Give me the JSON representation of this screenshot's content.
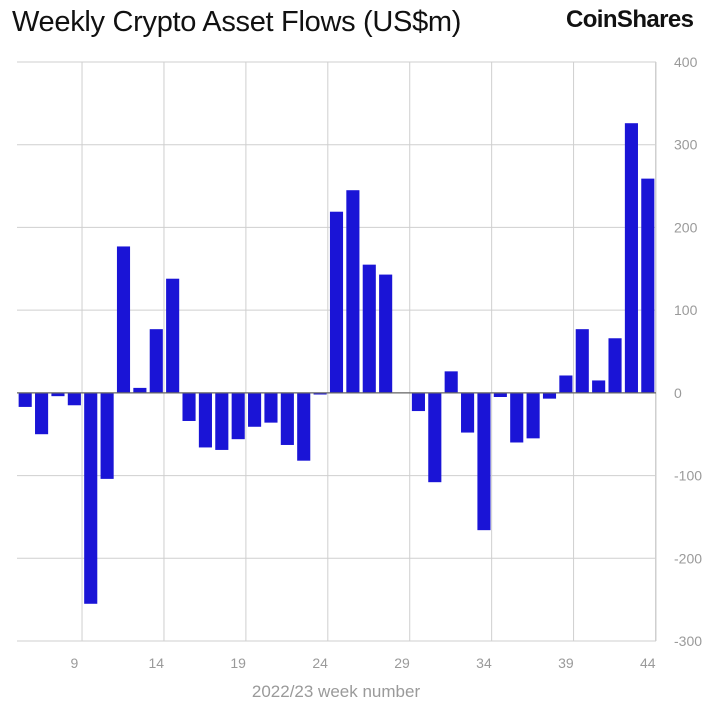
{
  "header": {
    "title": "Weekly Crypto Asset Flows (US$m)",
    "brand": "CoinShares"
  },
  "chart_data": {
    "type": "bar",
    "title": "Weekly Crypto Asset Flows (US$m)",
    "xlabel": "2022/23 week number",
    "ylabel": "",
    "x": [
      6,
      7,
      8,
      9,
      10,
      11,
      12,
      13,
      14,
      15,
      16,
      17,
      18,
      19,
      20,
      21,
      22,
      23,
      24,
      25,
      26,
      27,
      28,
      29,
      30,
      31,
      32,
      33,
      34,
      35,
      36,
      37,
      38,
      39,
      40,
      41,
      42,
      43,
      44
    ],
    "values": [
      -17,
      -50,
      -4,
      -15,
      -255,
      -104,
      177,
      6,
      77,
      138,
      -34,
      -66,
      -69,
      -56,
      -41,
      -36,
      -63,
      -82,
      -2,
      219,
      245,
      155,
      143,
      0,
      -22,
      -108,
      26,
      -48,
      -166,
      -5,
      -60,
      -55,
      -7,
      21,
      77,
      15,
      66,
      326,
      259
    ],
    "xticks": [
      9,
      14,
      19,
      24,
      29,
      34,
      39,
      44
    ],
    "xlim": [
      5.5,
      44.5
    ],
    "ylim": [
      -300,
      400
    ],
    "yticks": [
      -300,
      -200,
      -100,
      0,
      100,
      200,
      300,
      400
    ],
    "grid": true,
    "bar_color": "#1a14d6",
    "axis_color": "#9a9a9a",
    "grid_color": "#cfcfcf"
  }
}
